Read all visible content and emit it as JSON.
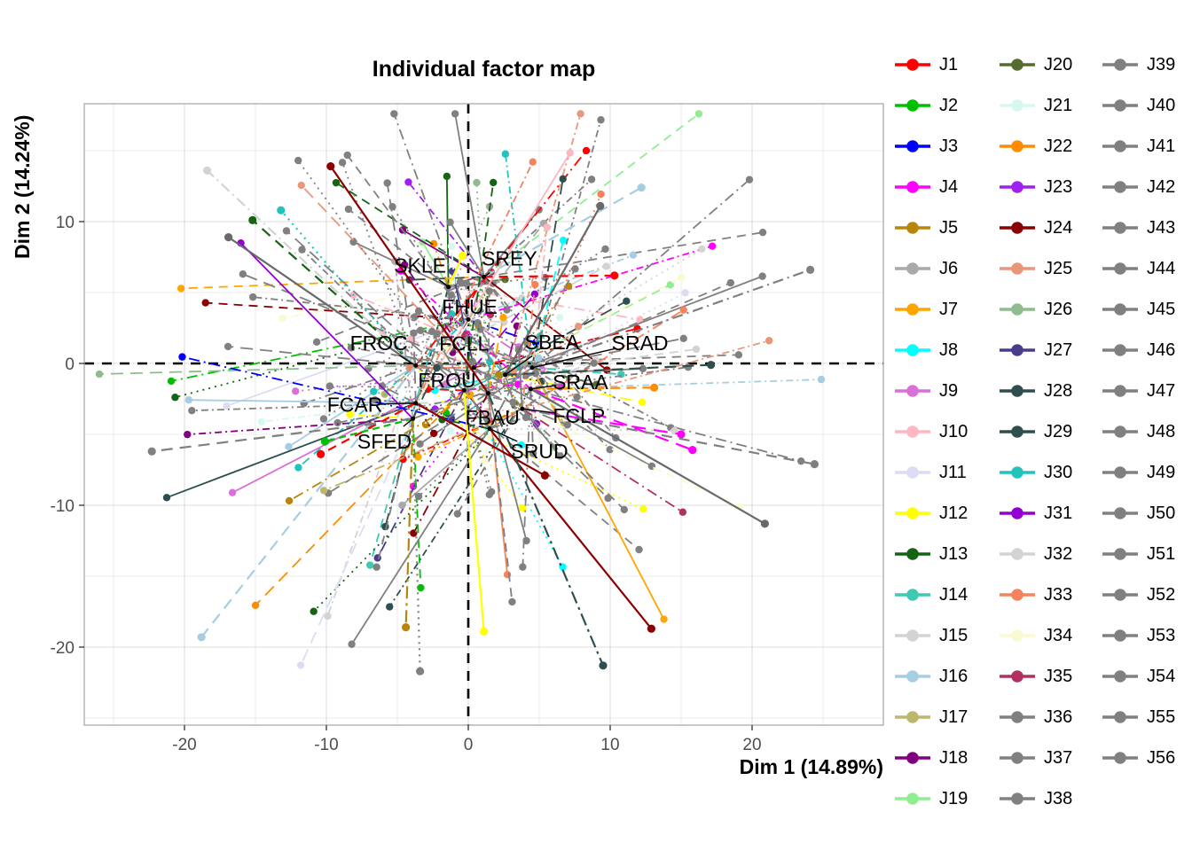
{
  "title": "Individual factor map",
  "axes": {
    "x_label": "Dim 1 (14.89%)",
    "y_label": "Dim 2 (14.24%)",
    "x_ticks": [
      -20,
      -10,
      0,
      10,
      20
    ],
    "y_ticks": [
      10,
      0,
      -10,
      -20
    ],
    "x_range": [
      -27.1,
      29.3
    ],
    "y_range": [
      -25.5,
      18.3
    ],
    "grid_step_minor": 5,
    "grid_step_major": 10
  },
  "style": {
    "panel_background": "#ffffff",
    "panel_border": "#aaaaaa",
    "grid_major": "#dcdcdc",
    "grid_minor": "#ececec",
    "dashed_axis_color": "#000000",
    "tick_text_color": "#4d4d4d",
    "point_label_color": "#000000"
  },
  "chart_data": {
    "type": "scatter",
    "title": "Individual factor map",
    "xlabel": "Dim 1 (14.89%)",
    "ylabel": "Dim 2 (14.24%)",
    "description": "MFA/PCA individual factor map: 14 product mean points (labelled) with partial points for 56 judges (J1-J56) connected by radiating coloured line segments. Partial point positions are approximated.",
    "products": [
      {
        "name": "SKLE",
        "mean": [
          -1.4,
          5.4
        ],
        "label": [
          -3.4,
          6.9
        ]
      },
      {
        "name": "SREY",
        "mean": [
          1.1,
          6.1
        ],
        "label": [
          2.9,
          7.4
        ]
      },
      {
        "name": "FHUE",
        "mean": [
          0.0,
          3.1
        ],
        "label": [
          0.1,
          4.0
        ]
      },
      {
        "name": "FROC",
        "mean": [
          -3.7,
          -0.15
        ],
        "label": [
          -6.3,
          1.45
        ]
      },
      {
        "name": "FCLL",
        "mean": [
          0.4,
          -0.3
        ],
        "label": [
          -0.3,
          1.4
        ]
      },
      {
        "name": "SBEA",
        "mean": [
          2.6,
          -0.8
        ],
        "label": [
          5.9,
          1.5
        ]
      },
      {
        "name": "SRAD",
        "mean": [
          4.5,
          -0.3
        ],
        "label": [
          12.1,
          1.45
        ]
      },
      {
        "name": "FROU",
        "mean": [
          -0.3,
          -1.9
        ],
        "label": [
          -1.5,
          -1.2
        ]
      },
      {
        "name": "SRAA",
        "mean": [
          4.4,
          -1.8
        ],
        "label": [
          7.9,
          -1.3
        ]
      },
      {
        "name": "FCAR",
        "mean": [
          -3.7,
          -2.8
        ],
        "label": [
          -8.0,
          -2.9
        ]
      },
      {
        "name": "FBAU",
        "mean": [
          1.4,
          -2.1
        ],
        "label": [
          1.7,
          -3.8
        ]
      },
      {
        "name": "FCLP",
        "mean": [
          3.8,
          -3.2
        ],
        "label": [
          7.8,
          -3.7
        ]
      },
      {
        "name": "SFED",
        "mean": [
          -3.9,
          -3.9
        ],
        "label": [
          -5.9,
          -5.5
        ]
      },
      {
        "name": "SRUD",
        "mean": [
          1.5,
          -4.6
        ],
        "label": [
          5.0,
          -6.2
        ]
      }
    ],
    "judges": [
      {
        "name": "J1",
        "color": "#FF0000"
      },
      {
        "name": "J2",
        "color": "#00C000"
      },
      {
        "name": "J3",
        "color": "#0000FF"
      },
      {
        "name": "J4",
        "color": "#FF00FF"
      },
      {
        "name": "J5",
        "color": "#B8860B"
      },
      {
        "name": "J6",
        "color": "#A9A9A9"
      },
      {
        "name": "J7",
        "color": "#FFA500"
      },
      {
        "name": "J8",
        "color": "#00FFFF"
      },
      {
        "name": "J9",
        "color": "#DA70D6"
      },
      {
        "name": "J10",
        "color": "#FFB6C1"
      },
      {
        "name": "J11",
        "color": "#DCDCF5"
      },
      {
        "name": "J12",
        "color": "#FFFF00"
      },
      {
        "name": "J13",
        "color": "#146414"
      },
      {
        "name": "J14",
        "color": "#3EC9B2"
      },
      {
        "name": "J15",
        "color": "#D3D3D3"
      },
      {
        "name": "J16",
        "color": "#A6CEE3"
      },
      {
        "name": "J17",
        "color": "#BDB76B"
      },
      {
        "name": "J18",
        "color": "#800080"
      },
      {
        "name": "J19",
        "color": "#90EE90"
      },
      {
        "name": "J20",
        "color": "#556B2F"
      },
      {
        "name": "J21",
        "color": "#D8F7F0"
      },
      {
        "name": "J22",
        "color": "#FF8C00"
      },
      {
        "name": "J23",
        "color": "#A020F0"
      },
      {
        "name": "J24",
        "color": "#8B0000"
      },
      {
        "name": "J25",
        "color": "#E9967A"
      },
      {
        "name": "J26",
        "color": "#8FBC8F"
      },
      {
        "name": "J27",
        "color": "#483D8B"
      },
      {
        "name": "J28",
        "color": "#2F4F4F"
      },
      {
        "name": "J29",
        "color": "#2F4F4F"
      },
      {
        "name": "J30",
        "color": "#20C4BC"
      },
      {
        "name": "J31",
        "color": "#9400D3"
      },
      {
        "name": "J32",
        "color": "#D3D3D3"
      },
      {
        "name": "J33",
        "color": "#F4835D"
      },
      {
        "name": "J34",
        "color": "#FAFAD2"
      },
      {
        "name": "J35",
        "color": "#B03060"
      },
      {
        "name": "J36",
        "color": "#808080"
      },
      {
        "name": "J37",
        "color": "#808080"
      },
      {
        "name": "J38",
        "color": "#808080"
      },
      {
        "name": "J39",
        "color": "#808080"
      },
      {
        "name": "J40",
        "color": "#808080"
      },
      {
        "name": "J41",
        "color": "#808080"
      },
      {
        "name": "J42",
        "color": "#808080"
      },
      {
        "name": "J43",
        "color": "#808080"
      },
      {
        "name": "J44",
        "color": "#808080"
      },
      {
        "name": "J45",
        "color": "#808080"
      },
      {
        "name": "J46",
        "color": "#808080"
      },
      {
        "name": "J47",
        "color": "#808080"
      },
      {
        "name": "J48",
        "color": "#808080"
      },
      {
        "name": "J49",
        "color": "#808080"
      },
      {
        "name": "J50",
        "color": "#808080"
      },
      {
        "name": "J51",
        "color": "#808080"
      },
      {
        "name": "J52",
        "color": "#808080"
      },
      {
        "name": "J53",
        "color": "#808080"
      },
      {
        "name": "J54",
        "color": "#808080"
      },
      {
        "name": "J55",
        "color": "#808080"
      },
      {
        "name": "J56",
        "color": "#808080"
      }
    ],
    "salient_segments": [
      {
        "color": "#8B0000",
        "dash": "",
        "from": [
          1.4,
          -2.1
        ],
        "to": [
          -9.7,
          13.9
        ]
      },
      {
        "color": "#8B0000",
        "dash": "",
        "from": [
          1.5,
          -4.6
        ],
        "to": [
          12.9,
          -18.7
        ]
      },
      {
        "color": "#8B0000",
        "dash": "",
        "from": [
          -3.7,
          -2.8
        ],
        "to": [
          5.4,
          -7.9
        ]
      },
      {
        "color": "#FFFF00",
        "dash": "",
        "from": [
          -1.4,
          5.4
        ],
        "to": [
          -0.4,
          7.6
        ]
      },
      {
        "color": "#FFFF00",
        "dash": "",
        "from": [
          -0.3,
          -1.9
        ],
        "to": [
          1.1,
          -18.9
        ]
      },
      {
        "color": "#FF00FF",
        "dash": "16 9",
        "from": [
          4.4,
          -1.8
        ],
        "to": [
          15.8,
          -6.1
        ]
      },
      {
        "color": "#FF00FF",
        "dash": "16 9",
        "from": [
          3.8,
          -3.2
        ],
        "to": [
          15.0,
          -5.0
        ]
      },
      {
        "color": "#FF8C00",
        "dash": "11 7",
        "from": [
          4.4,
          -1.8
        ],
        "to": [
          13.1,
          -1.7
        ]
      },
      {
        "color": "#A6CEE3",
        "dash": "13 8",
        "from": [
          1.1,
          6.1
        ],
        "to": [
          12.2,
          12.4
        ]
      },
      {
        "color": "#A6CEE3",
        "dash": "13 8",
        "from": [
          -3.7,
          -0.15
        ],
        "to": [
          -18.8,
          -19.3
        ]
      },
      {
        "color": "#808080",
        "dash": "12 8",
        "from": [
          3.8,
          -3.2
        ],
        "to": [
          24.4,
          -7.1
        ]
      },
      {
        "color": "#696969",
        "dash": "",
        "from": [
          4.4,
          -1.8
        ],
        "to": [
          20.9,
          -11.3
        ]
      },
      {
        "color": "#2F4F4F",
        "dash": "14 5 3 5",
        "from": [
          1.4,
          -2.1
        ],
        "to": [
          9.5,
          -21.3
        ]
      },
      {
        "color": "#2F4F4F",
        "dash": "13 7",
        "from": [
          2.6,
          -0.8
        ],
        "to": [
          17.1,
          -0.1
        ]
      },
      {
        "color": "#FF0000",
        "dash": "10 7",
        "from": [
          -3.7,
          -2.8
        ],
        "to": [
          -10.4,
          -6.4
        ]
      },
      {
        "color": "#FF0000",
        "dash": "10 7",
        "from": [
          1.1,
          6.1
        ],
        "to": [
          10.3,
          6.2
        ]
      },
      {
        "color": "#696969",
        "dash": "",
        "from": [
          -3.7,
          -0.15
        ],
        "to": [
          -16.9,
          8.9
        ]
      },
      {
        "color": "#696969",
        "dash": "",
        "from": [
          2.6,
          -0.8
        ],
        "to": [
          9.3,
          11.1
        ]
      },
      {
        "color": "#146414",
        "dash": "12 8",
        "from": [
          -3.7,
          -0.15
        ],
        "to": [
          -15.2,
          10.1
        ]
      },
      {
        "color": "#D3D3D3",
        "dash": "12 5 2 5",
        "from": [
          -3.7,
          -0.15
        ],
        "to": [
          -18.4,
          13.6
        ]
      },
      {
        "color": "#20C4BC",
        "dash": "2 5",
        "from": [
          -3.8,
          -0.2
        ],
        "to": [
          -13.2,
          10.8
        ]
      },
      {
        "color": "#B8860B",
        "dash": "14 5 3 5",
        "from": [
          -3.9,
          -3.9
        ],
        "to": [
          -4.4,
          -18.6
        ]
      },
      {
        "color": "#808080",
        "dash": "2 5",
        "from": [
          -3.9,
          -3.9
        ],
        "to": [
          -3.4,
          -21.7
        ]
      },
      {
        "color": "#00C000",
        "dash": "8 5",
        "from": [
          -3.9,
          -3.9
        ],
        "to": [
          -10.1,
          -5.5
        ]
      },
      {
        "color": "#808080",
        "dash": "13 8",
        "from": [
          -3.9,
          -3.9
        ],
        "to": [
          -22.3,
          -6.2
        ]
      },
      {
        "color": "#808080",
        "dash": "12 5 2 5",
        "from": [
          4.5,
          -0.3
        ],
        "to": [
          24.1,
          6.6
        ]
      }
    ]
  },
  "legend": {
    "columns": 3,
    "rows_per_column": 19
  }
}
